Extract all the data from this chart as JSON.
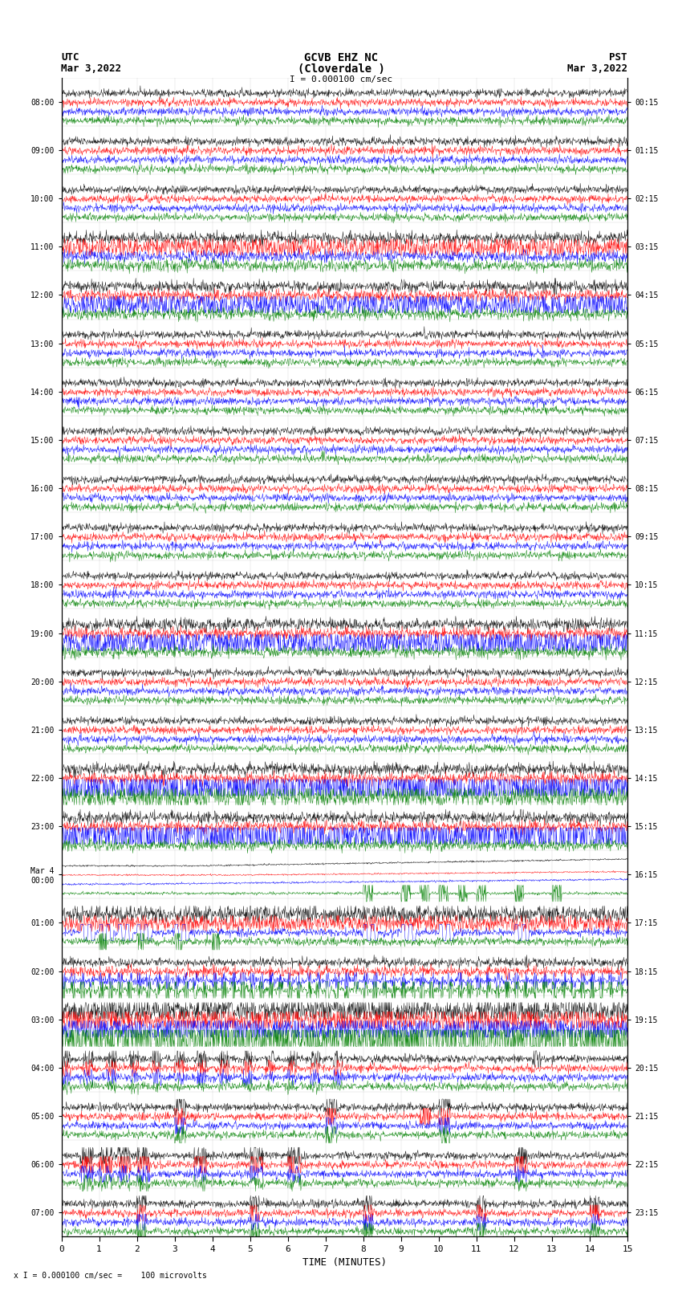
{
  "title_line1": "GCVB EHZ NC",
  "title_line2": "(Cloverdale )",
  "title_line3": "I = 0.000100 cm/sec",
  "label_left_top": "UTC",
  "label_left_date": "Mar 3,2022",
  "label_right_top": "PST",
  "label_right_date": "Mar 3,2022",
  "xlabel": "TIME (MINUTES)",
  "footnote": "x I = 0.000100 cm/sec =    100 microvolts",
  "utc_times": [
    "08:00",
    "09:00",
    "10:00",
    "11:00",
    "12:00",
    "13:00",
    "14:00",
    "15:00",
    "16:00",
    "17:00",
    "18:00",
    "19:00",
    "20:00",
    "21:00",
    "22:00",
    "23:00",
    "Mar 4\n00:00",
    "01:00",
    "02:00",
    "03:00",
    "04:00",
    "05:00",
    "06:00",
    "07:00"
  ],
  "pst_times": [
    "00:15",
    "01:15",
    "02:15",
    "03:15",
    "04:15",
    "05:15",
    "06:15",
    "07:15",
    "08:15",
    "09:15",
    "10:15",
    "11:15",
    "12:15",
    "13:15",
    "14:15",
    "15:15",
    "16:15",
    "17:15",
    "18:15",
    "19:15",
    "20:15",
    "21:15",
    "22:15",
    "23:15"
  ],
  "n_rows": 24,
  "n_traces_per_row": 4,
  "colors": [
    "black",
    "red",
    "blue",
    "green"
  ],
  "bg_color": "white",
  "plot_bg": "white",
  "xmin": 0,
  "xmax": 15,
  "xticks": [
    0,
    1,
    2,
    3,
    4,
    5,
    6,
    7,
    8,
    9,
    10,
    11,
    12,
    13,
    14,
    15
  ],
  "figwidth": 8.5,
  "figheight": 16.13,
  "dpi": 100,
  "noise_base": 0.04,
  "earthquake_rows": [
    16,
    17,
    18,
    19,
    20,
    21,
    22,
    23
  ],
  "eq_colors_amplitude": {
    "16": [
      0.0,
      0.0,
      0.0,
      0.0
    ],
    "17": [
      0.05,
      0.05,
      0.05,
      0.3
    ],
    "18": [
      0.1,
      0.2,
      0.4,
      0.8
    ],
    "19": [
      0.4,
      0.5,
      0.6,
      1.5
    ],
    "20": [
      0.2,
      0.2,
      0.2,
      0.5
    ],
    "21": [
      0.15,
      0.15,
      0.15,
      0.3
    ],
    "22": [
      0.3,
      0.4,
      0.3,
      0.5
    ],
    "23": [
      0.1,
      0.1,
      0.1,
      0.2
    ]
  }
}
